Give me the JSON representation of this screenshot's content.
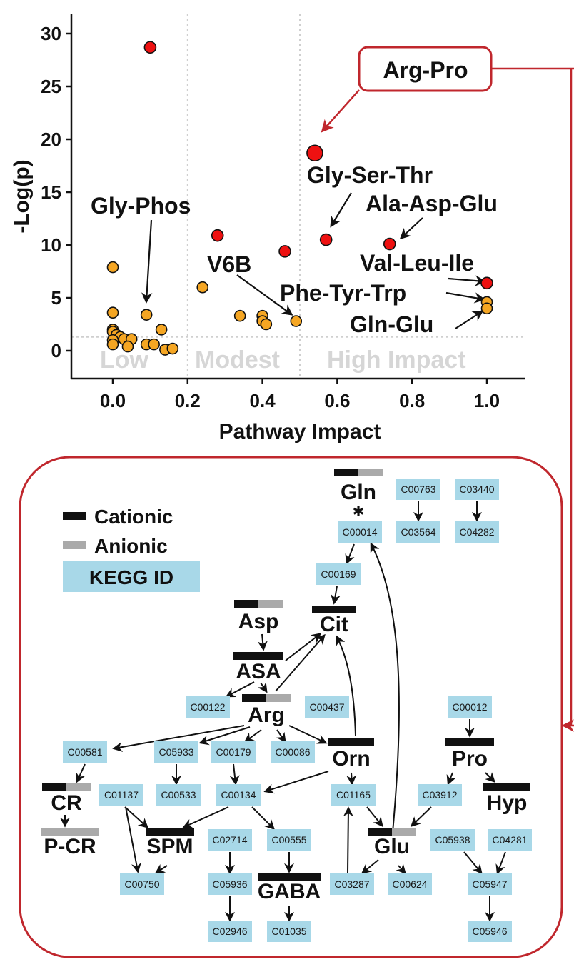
{
  "chart_data": {
    "type": "scatter",
    "xlabel": "Pathway Impact",
    "ylabel": "-Log(p)",
    "xlim": [
      -0.1,
      1.1
    ],
    "ylim": [
      -2.5,
      31
    ],
    "xticks": [
      "0.0",
      "0.2",
      "0.4",
      "0.6",
      "0.8",
      "1.0"
    ],
    "yticks": [
      "0",
      "5",
      "10",
      "15",
      "20",
      "25",
      "30"
    ],
    "threshold_lines": {
      "vertical": [
        0.2,
        0.5
      ],
      "horizontal": [
        1.3
      ]
    },
    "zones": [
      "Low",
      "Modest",
      "High Impact"
    ],
    "colors": {
      "significant": "#ee1111",
      "other": "#f5a623",
      "callout": "#c0272d",
      "kegg_box": "#a8d8e8"
    },
    "points": [
      {
        "x": 0.1,
        "y": 28.7,
        "group": "significant"
      },
      {
        "x": 0.54,
        "y": 18.7,
        "group": "significant",
        "highlight": true
      },
      {
        "x": 0.28,
        "y": 10.9,
        "group": "significant"
      },
      {
        "x": 0.57,
        "y": 10.5,
        "group": "significant"
      },
      {
        "x": 0.46,
        "y": 9.4,
        "group": "significant"
      },
      {
        "x": 0.74,
        "y": 10.1,
        "group": "significant"
      },
      {
        "x": 1.0,
        "y": 6.4,
        "group": "significant"
      },
      {
        "x": 0.0,
        "y": 7.9,
        "group": "other"
      },
      {
        "x": 0.24,
        "y": 6.0,
        "group": "other"
      },
      {
        "x": 1.0,
        "y": 4.6,
        "group": "other"
      },
      {
        "x": 1.0,
        "y": 4.0,
        "group": "other"
      },
      {
        "x": 0.0,
        "y": 3.6,
        "group": "other"
      },
      {
        "x": 0.09,
        "y": 3.4,
        "group": "other"
      },
      {
        "x": 0.34,
        "y": 3.3,
        "group": "other"
      },
      {
        "x": 0.4,
        "y": 3.3,
        "group": "other"
      },
      {
        "x": 0.4,
        "y": 2.8,
        "group": "other"
      },
      {
        "x": 0.41,
        "y": 2.5,
        "group": "other"
      },
      {
        "x": 0.49,
        "y": 2.8,
        "group": "other"
      },
      {
        "x": 0.0,
        "y": 2.0,
        "group": "other"
      },
      {
        "x": 0.0,
        "y": 1.8,
        "group": "other"
      },
      {
        "x": 0.01,
        "y": 1.5,
        "group": "other"
      },
      {
        "x": 0.02,
        "y": 1.3,
        "group": "other"
      },
      {
        "x": 0.03,
        "y": 1.1,
        "group": "other"
      },
      {
        "x": 0.05,
        "y": 1.1,
        "group": "other"
      },
      {
        "x": 0.0,
        "y": 1.0,
        "group": "other"
      },
      {
        "x": 0.13,
        "y": 2.0,
        "group": "other"
      },
      {
        "x": 0.0,
        "y": 0.6,
        "group": "other"
      },
      {
        "x": 0.04,
        "y": 0.4,
        "group": "other"
      },
      {
        "x": 0.09,
        "y": 0.6,
        "group": "other"
      },
      {
        "x": 0.11,
        "y": 0.6,
        "group": "other"
      },
      {
        "x": 0.14,
        "y": 0.1,
        "group": "other"
      },
      {
        "x": 0.16,
        "y": 0.2,
        "group": "other"
      }
    ],
    "annotations": [
      "Arg-Pro",
      "Gly-Ser-Thr",
      "Ala-Asp-Glu",
      "Gly-Phos",
      "V6B",
      "Val-Leu-Ile",
      "Phe-Tyr-Trp",
      "Gln-Glu"
    ]
  },
  "legend": {
    "cationic": "Cationic",
    "anionic": "Anionic",
    "kegg": "KEGG ID"
  },
  "pathway": {
    "metabolites": [
      "Gln",
      "Asp",
      "Cit",
      "ASA",
      "Arg",
      "Orn",
      "Pro",
      "Hyp",
      "CR",
      "P-CR",
      "SPM",
      "GABA",
      "Glu"
    ],
    "kegg_ids": [
      "C00763",
      "C03440",
      "C00014",
      "C03564",
      "C04282",
      "C00169",
      "C00122",
      "C00437",
      "C00012",
      "C00581",
      "C05933",
      "C00179",
      "C00086",
      "C01137",
      "C00533",
      "C00134",
      "C01165",
      "C03912",
      "C02714",
      "C00555",
      "C05938",
      "C04281",
      "C00750",
      "C05936",
      "C03287",
      "C00624",
      "C05947",
      "C02946",
      "C01035",
      "C05946"
    ],
    "star": "✱"
  }
}
